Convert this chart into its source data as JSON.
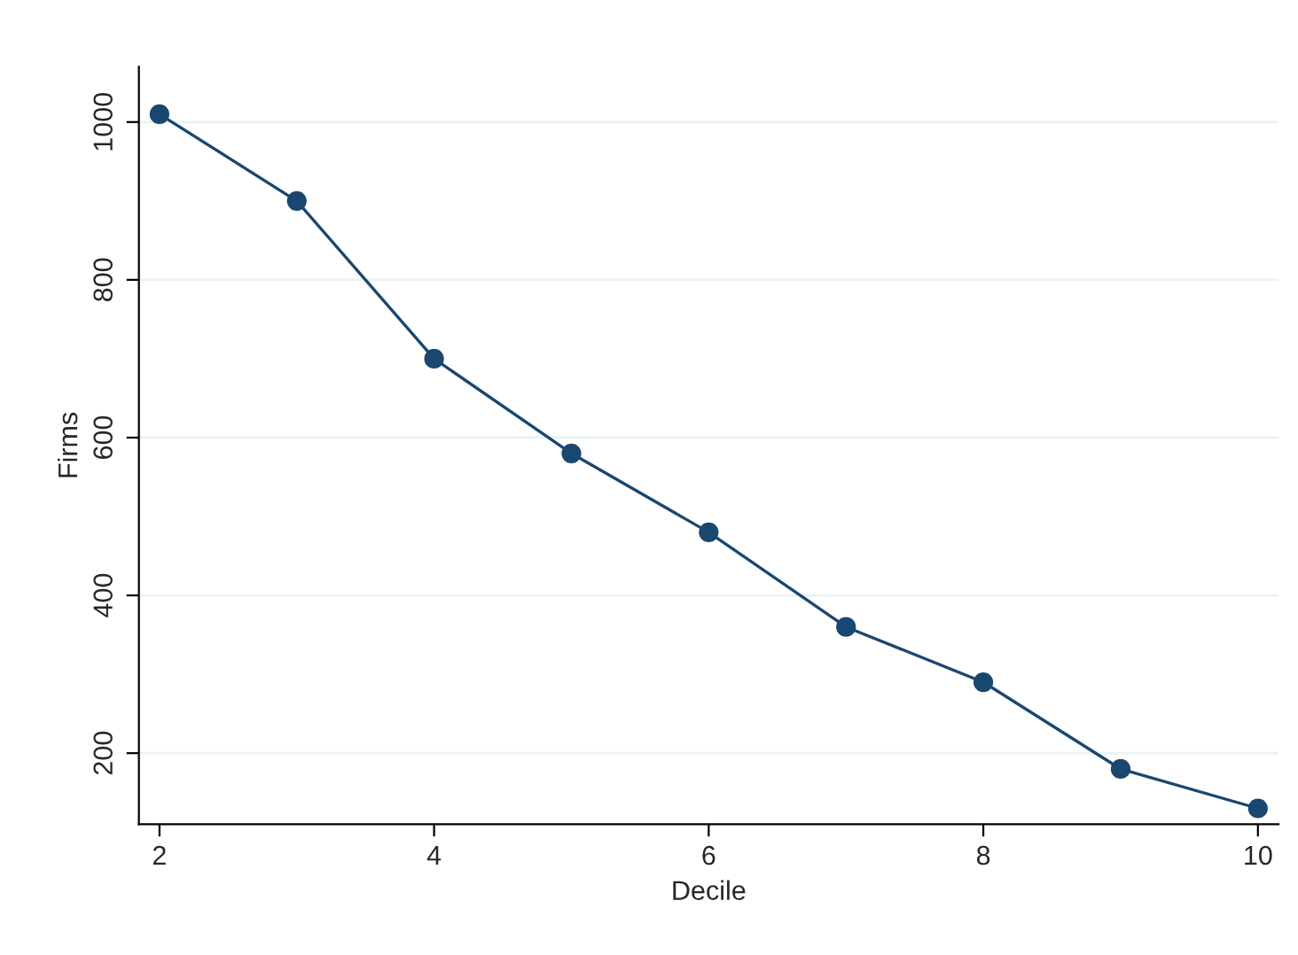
{
  "chart_data": {
    "type": "line",
    "xlabel": "Decile",
    "ylabel": "Firms",
    "x": [
      2,
      3,
      4,
      5,
      6,
      7,
      8,
      9,
      10
    ],
    "series": [
      {
        "color": "#1a476f",
        "values": [
          1010,
          900,
          700,
          580,
          480,
          360,
          290,
          180,
          130
        ]
      }
    ],
    "xlim": [
      1.85,
      10.15
    ],
    "xticks": [
      2,
      4,
      6,
      8,
      10
    ],
    "ylim": [
      110,
      1070
    ],
    "yticks": [
      200,
      400,
      600,
      800,
      1000
    ],
    "grid": "y",
    "marker": "circle",
    "line_style": "solid",
    "legend": false
  }
}
